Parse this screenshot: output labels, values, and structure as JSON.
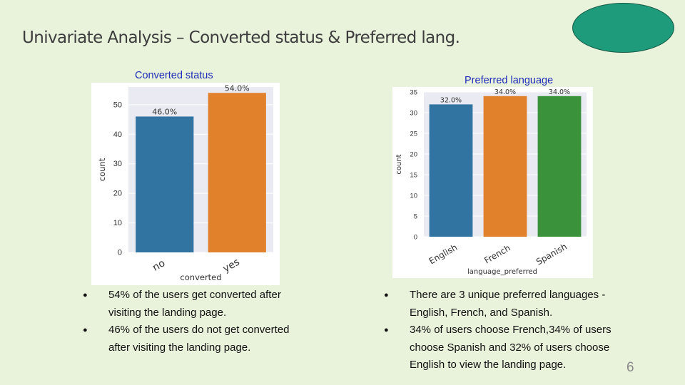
{
  "slide": {
    "title": "Univariate Analysis – Converted status & Preferred lang.",
    "page_number": "6"
  },
  "charts": {
    "converted": {
      "title": "Converted status"
    },
    "language": {
      "title": "Preferred language"
    }
  },
  "bullets": {
    "left": [
      "54% of the users get converted after visiting the landing page.",
      "46% of the users do not get converted after visiting the landing page."
    ],
    "right": [
      "There are 3 unique preferred languages - English, French, and Spanish.",
      "34% of users choose French,34% of users choose Spanish and 32% of users choose English to view the landing page."
    ]
  },
  "colors": {
    "blue": "#3274a1",
    "orange": "#e1812c",
    "green": "#3a923a",
    "accent_ellipse": "#1d9b7a"
  },
  "chart_data": [
    {
      "type": "bar",
      "title": "Converted status",
      "categories": [
        "no",
        "yes"
      ],
      "values": [
        46,
        54
      ],
      "data_labels": [
        "46.0%",
        "54.0%"
      ],
      "colors": [
        "#3274a1",
        "#e1812c"
      ],
      "xlabel": "converted",
      "ylabel": "count",
      "ylim": [
        0,
        56
      ],
      "yticks": [
        0,
        10,
        20,
        30,
        40,
        50
      ],
      "grid": true
    },
    {
      "type": "bar",
      "title": "Preferred language",
      "categories": [
        "English",
        "French",
        "Spanish"
      ],
      "values": [
        32,
        34,
        34
      ],
      "data_labels": [
        "32.0%",
        "34.0%",
        "34.0%"
      ],
      "colors": [
        "#3274a1",
        "#e1812c",
        "#3a923a"
      ],
      "xlabel": "language_preferred",
      "ylabel": "count",
      "ylim": [
        0,
        35
      ],
      "yticks": [
        0,
        5,
        10,
        15,
        20,
        25,
        30,
        35
      ],
      "grid": true
    }
  ]
}
